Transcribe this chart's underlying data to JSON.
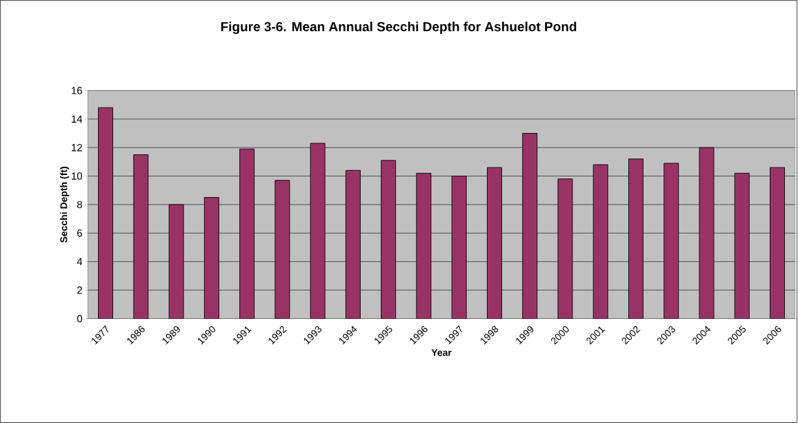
{
  "chart_data": {
    "type": "bar",
    "title": "Figure 3-6.  Mean Annual Secchi Depth for Ashuelot Pond",
    "xlabel": "Year",
    "ylabel": "Secchi Depth (ft)",
    "categories": [
      "1977",
      "1986",
      "1989",
      "1990",
      "1991",
      "1992",
      "1993",
      "1994",
      "1995",
      "1996",
      "1997",
      "1998",
      "1999",
      "2000",
      "2001",
      "2002",
      "2003",
      "2004",
      "2005",
      "2006"
    ],
    "values": [
      14.8,
      11.5,
      8.0,
      8.5,
      11.9,
      9.7,
      12.3,
      10.4,
      11.1,
      10.2,
      10.0,
      10.6,
      13.0,
      9.8,
      10.8,
      11.2,
      10.9,
      12.0,
      10.2,
      10.6
    ],
    "color": "#993366",
    "ylim": [
      0,
      16
    ],
    "yticks": [
      0,
      2,
      4,
      6,
      8,
      10,
      12,
      14,
      16
    ],
    "grid": "y"
  }
}
